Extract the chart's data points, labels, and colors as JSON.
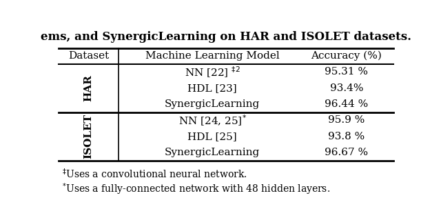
{
  "col_headers": [
    "Dataset",
    "Machine Learning Model",
    "Accuracy (%)"
  ],
  "har_rows": [
    [
      "NN [22] $^{\\ddagger 2}$",
      "95.31 %"
    ],
    [
      "HDL [23]",
      "93.4%"
    ],
    [
      "SynergicLearning",
      "96.44 %"
    ]
  ],
  "isolet_rows": [
    [
      "NN [24, 25]$^{*}$",
      "95.9 %"
    ],
    [
      "HDL [25]",
      "93.8 %"
    ],
    [
      "SynergicLearning",
      "96.67 %"
    ]
  ],
  "har_label": "HAR",
  "isolet_label": "ISOLET",
  "footnote1": "$^{\\ddagger}$Uses a convolutional neural network.",
  "footnote2": "$^{*}$Uses a fully-connected network with 48 hidden layers.",
  "title_text": "ems, and SynergicLearning on HAR and ISOLET datasets.",
  "bg_color": "#ffffff",
  "text_color": "#000000",
  "header_fontsize": 11,
  "body_fontsize": 11,
  "footnote_fontsize": 10,
  "rotated_label_fontsize": 11
}
